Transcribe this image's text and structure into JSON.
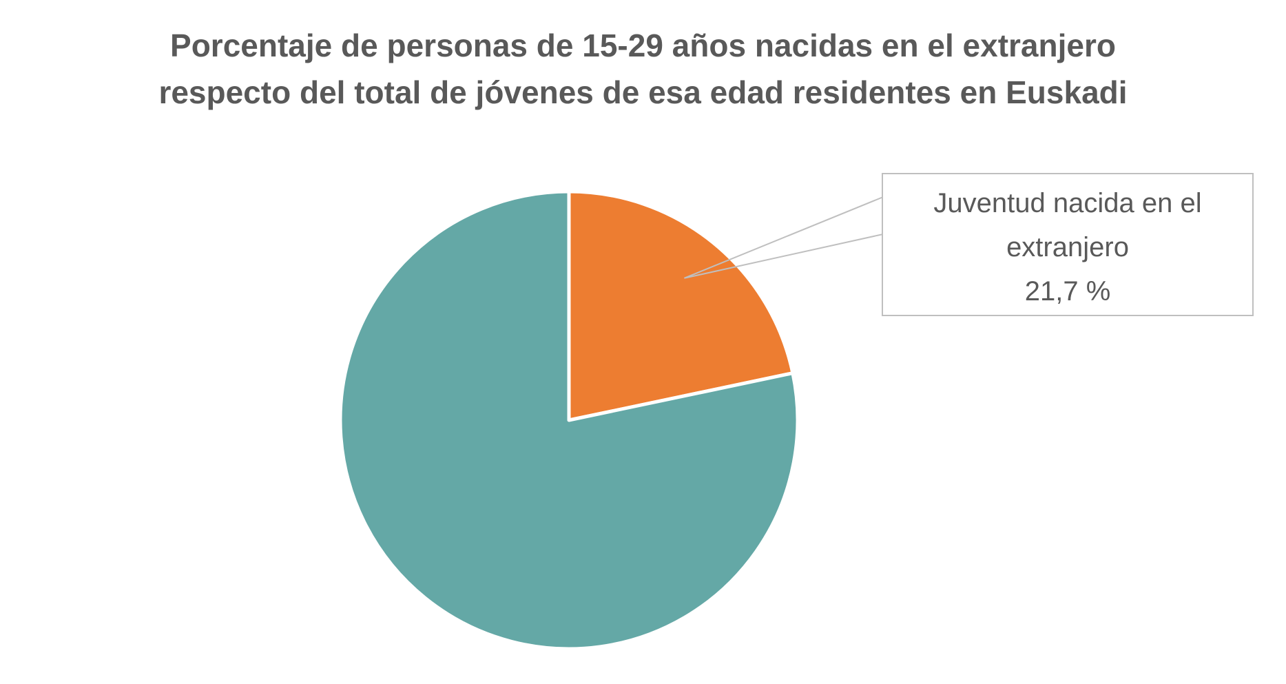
{
  "chart_data": {
    "type": "pie",
    "title_lines": [
      "Porcentaje de personas de 15-29 años nacidas en el extranjero",
      "respecto del total de jóvenes de esa edad residentes en Euskadi"
    ],
    "slices": [
      {
        "label": "Juventud nacida en el extranjero",
        "value": 21.7,
        "color": "#ED7D31"
      },
      {
        "label": "",
        "value": 78.3,
        "color": "#64A8A6"
      }
    ],
    "data_label": {
      "line1": "Juventud nacida en el",
      "line2": "extranjero",
      "line3": "21,7 %"
    },
    "start_angle": "top, clockwise",
    "legend": "none"
  }
}
